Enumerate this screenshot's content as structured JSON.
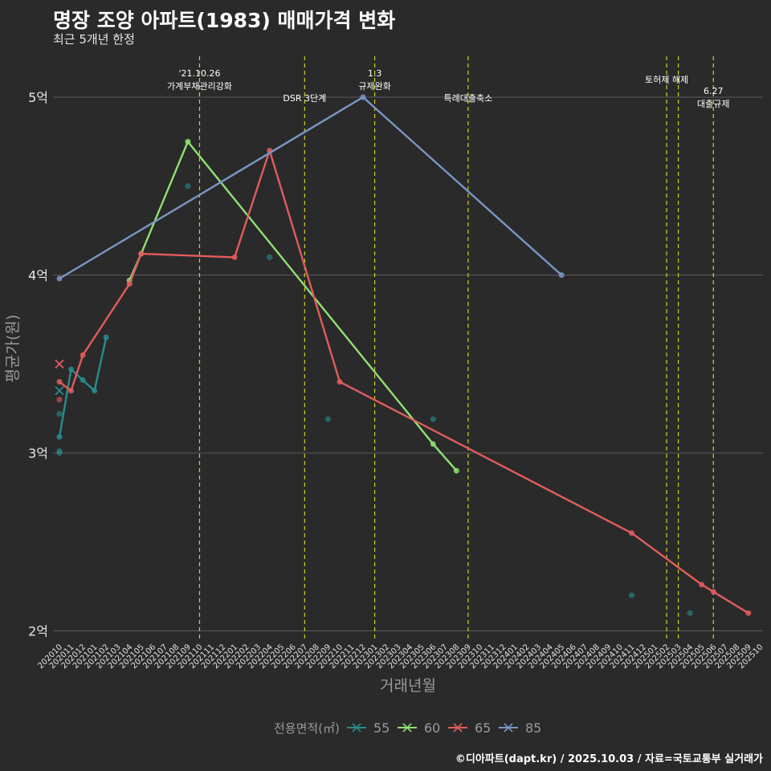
{
  "title": "명장 조양 아파트(1983) 매매가격 변화",
  "subtitle": "최근 5개년 한정",
  "caption": "©디아파트(dapt.kr) / 2025.10.03 / 자료=국토교통부 실거래가",
  "chart_data": {
    "type": "line",
    "xlabel": "거래년월",
    "ylabel": "평균가(원)",
    "ylim": [
      2,
      5
    ],
    "y_ticks": [
      {
        "value": 2,
        "label": "2억"
      },
      {
        "value": 3,
        "label": "3억"
      },
      {
        "value": 4,
        "label": "4억"
      },
      {
        "value": 5,
        "label": "5억"
      }
    ],
    "x_ticks": [
      "202010",
      "202011",
      "202012",
      "202101",
      "202102",
      "202103",
      "202104",
      "202105",
      "202106",
      "202107",
      "202108",
      "202109",
      "202110",
      "202111",
      "202112",
      "202201",
      "202202",
      "202203",
      "202204",
      "202205",
      "202206",
      "202207",
      "202208",
      "202209",
      "202210",
      "202211",
      "202212",
      "202301",
      "202302",
      "202303",
      "202304",
      "202305",
      "202306",
      "202307",
      "202308",
      "202309",
      "202310",
      "202311",
      "202312",
      "202401",
      "202402",
      "202403",
      "202404",
      "202405",
      "202406",
      "202407",
      "202408",
      "202409",
      "202410",
      "202411",
      "202412",
      "202501",
      "202502",
      "202503",
      "202504",
      "202505",
      "202506",
      "202507",
      "202508",
      "202509",
      "202510"
    ],
    "grid": true,
    "legend_title": "전용면적(㎡)",
    "legend_position": "bottom",
    "series": [
      {
        "name": "55",
        "color": "#2a8c8c",
        "line": [
          [
            "202010",
            3.09
          ],
          [
            "202011",
            3.47
          ],
          [
            "202012",
            3.41
          ],
          [
            "202101",
            3.35
          ],
          [
            "202102",
            3.65
          ]
        ],
        "points": [
          [
            "202010",
            3.22
          ],
          [
            "202010",
            3.01
          ],
          [
            "202010",
            3.0
          ],
          [
            "202109",
            4.5
          ],
          [
            "202204",
            4.1
          ],
          [
            "202209",
            3.19
          ],
          [
            "202306",
            3.19
          ],
          [
            "202411",
            2.2
          ],
          [
            "202504",
            2.1
          ]
        ],
        "cancelled": [
          [
            "202010",
            3.35
          ]
        ]
      },
      {
        "name": "60",
        "color": "#90e070",
        "line": [
          [
            "202104",
            3.97
          ],
          [
            "202105",
            4.12
          ],
          [
            "202109",
            4.75
          ],
          [
            "202306",
            3.05
          ],
          [
            "202308",
            2.9
          ]
        ],
        "points": [],
        "cancelled": []
      },
      {
        "name": "65",
        "color": "#e05d5d",
        "line": [
          [
            "202010",
            3.4
          ],
          [
            "202011",
            3.35
          ],
          [
            "202012",
            3.55
          ],
          [
            "202104",
            3.95
          ],
          [
            "202105",
            4.12
          ],
          [
            "202201",
            4.1
          ],
          [
            "202204",
            4.7
          ],
          [
            "202210",
            3.4
          ],
          [
            "202411",
            2.55
          ],
          [
            "202505",
            2.26
          ],
          [
            "202506",
            2.22
          ],
          [
            "202509",
            2.1
          ]
        ],
        "points": [
          [
            "202010",
            3.3
          ]
        ],
        "cancelled": [
          [
            "202010",
            3.5
          ]
        ]
      },
      {
        "name": "85",
        "color": "#7b96c4",
        "line": [
          [
            "202010",
            3.98
          ],
          [
            "202212",
            5.0
          ],
          [
            "202405",
            4.0
          ]
        ],
        "points": [],
        "cancelled": []
      }
    ],
    "events": [
      {
        "x": "202110",
        "lines": [
          "'21.10.26",
          "가계부채관리강화"
        ]
      },
      {
        "x": "202207",
        "lines": [
          "DSR 3단계"
        ]
      },
      {
        "x": "202301",
        "lines": [
          "1.3",
          "규제완화"
        ]
      },
      {
        "x": "202309",
        "lines": [
          "특례대출축소"
        ]
      },
      {
        "x": "202502",
        "lines": [
          "토허제 해제"
        ]
      },
      {
        "x": "202503",
        "lines": []
      },
      {
        "x": "202506",
        "lines": [
          "6.27",
          "대출규제"
        ]
      }
    ]
  }
}
